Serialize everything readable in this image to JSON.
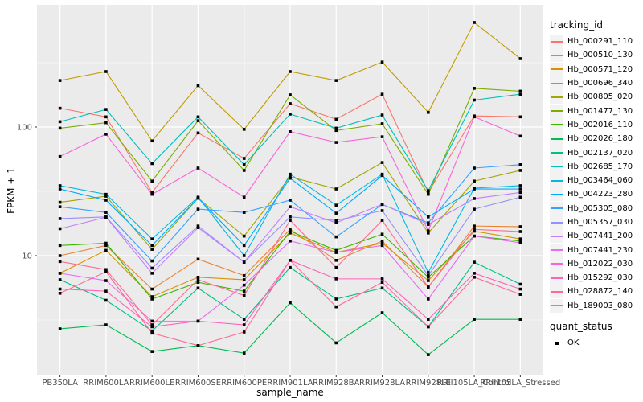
{
  "chart_data": {
    "type": "line",
    "title": "",
    "xlabel": "sample_name",
    "ylabel": "FPKM + 1",
    "y_scale": "log10",
    "y_ticks": [
      10,
      100
    ],
    "y_minor_ticks": [
      3.162,
      31.62,
      316.2
    ],
    "ylim": [
      1.2,
      900
    ],
    "grid": true,
    "panel_bg": "#EBEBEB",
    "grid_color": "#FFFFFF",
    "point_color": "#000000",
    "point_shape": "square",
    "legend_position": "right",
    "legend_title": "tracking_id",
    "legend2_title": "quant_status",
    "legend2_items": [
      "OK"
    ],
    "x_categories": [
      "PB350LA",
      "RRIM600LA",
      "RRIM600LE",
      "RRIM600SE",
      "RRIM600PE",
      "RRIM901LA",
      "RRIM928BA",
      "RRIM928LA",
      "RRIM928LE",
      "RRII105LA_Control",
      "RRII105LA_Stressed"
    ],
    "series": [
      {
        "name": "Hb_000291_110",
        "color": "#F8766D",
        "values": [
          140,
          120,
          31,
          90,
          57,
          152,
          115,
          180,
          31,
          122,
          120
        ]
      },
      {
        "name": "Hb_000510_130",
        "color": "#EA8331",
        "values": [
          10,
          12,
          5.5,
          9.4,
          7.0,
          16,
          9.2,
          13,
          5.7,
          17,
          16.8
        ]
      },
      {
        "name": "Hb_000571_120",
        "color": "#D89000",
        "values": [
          7.3,
          11,
          4.8,
          6.8,
          6.5,
          15,
          10.6,
          12.5,
          6.4,
          15.5,
          13.5
        ]
      },
      {
        "name": "Hb_000696_340",
        "color": "#C09B00",
        "values": [
          230,
          270,
          78,
          210,
          96,
          270,
          230,
          320,
          130,
          650,
          340
        ]
      },
      {
        "name": "Hb_000805_020",
        "color": "#A3A500",
        "values": [
          26,
          29,
          11.2,
          28,
          14.2,
          41,
          33,
          53,
          15,
          38,
          46
        ]
      },
      {
        "name": "Hb_001477_130",
        "color": "#7CAE00",
        "values": [
          98,
          108,
          38,
          112,
          46,
          178,
          94,
          106,
          30,
          200,
          190
        ]
      },
      {
        "name": "Hb_002016_110",
        "color": "#39B600",
        "values": [
          12,
          12.5,
          4.6,
          6.2,
          5.3,
          15.5,
          11,
          14.7,
          6.8,
          14.2,
          13
        ]
      },
      {
        "name": "Hb_002026_180",
        "color": "#00BB4E",
        "values": [
          2.7,
          2.9,
          1.8,
          2.0,
          1.75,
          4.3,
          2.1,
          3.6,
          1.7,
          3.2,
          3.2
        ]
      },
      {
        "name": "Hb_002137_020",
        "color": "#00C087",
        "values": [
          6.5,
          4.5,
          2.6,
          5.6,
          3.2,
          8.1,
          4.6,
          5.6,
          2.8,
          8.9,
          6.0
        ]
      },
      {
        "name": "Hb_002685_170",
        "color": "#00C0B8",
        "values": [
          110,
          137,
          52,
          120,
          51,
          126,
          98,
          124,
          32,
          162,
          180
        ]
      },
      {
        "name": "Hb_003464_060",
        "color": "#00BAE0",
        "values": [
          35,
          30,
          13.5,
          28.5,
          10,
          43,
          24.7,
          43,
          7.4,
          33.5,
          35
        ]
      },
      {
        "name": "Hb_004223_280",
        "color": "#00ACFC",
        "values": [
          33,
          27,
          12,
          28,
          12,
          40,
          21.4,
          42,
          20,
          33,
          33
        ]
      },
      {
        "name": "Hb_005305_080",
        "color": "#35A2FF",
        "values": [
          24,
          21.7,
          9.1,
          23,
          21.7,
          27,
          14,
          25,
          18,
          48,
          51
        ]
      },
      {
        "name": "Hb_005357_030",
        "color": "#9590FF",
        "values": [
          19.4,
          20,
          8.0,
          17,
          8.9,
          20,
          18.8,
          22.4,
          7.0,
          23,
          28.5
        ]
      },
      {
        "name": "Hb_007441_200",
        "color": "#C77CFF",
        "values": [
          16.2,
          19.9,
          7.3,
          16.5,
          8.9,
          24,
          18,
          25.1,
          17.5,
          27.8,
          31
        ]
      },
      {
        "name": "Hb_007441_230",
        "color": "#E76BF3",
        "values": [
          7.3,
          6.4,
          3.1,
          3.1,
          5.9,
          13,
          10.6,
          12,
          4.6,
          14.2,
          12.6
        ]
      },
      {
        "name": "Hb_012022_030",
        "color": "#FA62DB",
        "values": [
          59,
          88,
          30,
          48,
          28.5,
          92,
          76,
          84,
          15.6,
          120,
          85
        ]
      },
      {
        "name": "Hb_015292_030",
        "color": "#FF62BC",
        "values": [
          5.5,
          5.3,
          2.8,
          3.1,
          2.9,
          9.2,
          6.6,
          6.6,
          3.2,
          7.3,
          5.5
        ]
      },
      {
        "name": "Hb_028872_140",
        "color": "#FF6A98",
        "values": [
          5.1,
          7.5,
          2.5,
          2.0,
          2.55,
          9.2,
          4.0,
          6.2,
          2.8,
          6.8,
          5.0
        ]
      },
      {
        "name": "Hb_189003_080",
        "color": "#FF6C91",
        "values": [
          9.0,
          7.8,
          2.9,
          6.5,
          4.9,
          18.8,
          8.1,
          18.8,
          5.7,
          16,
          15.4
        ]
      }
    ]
  }
}
